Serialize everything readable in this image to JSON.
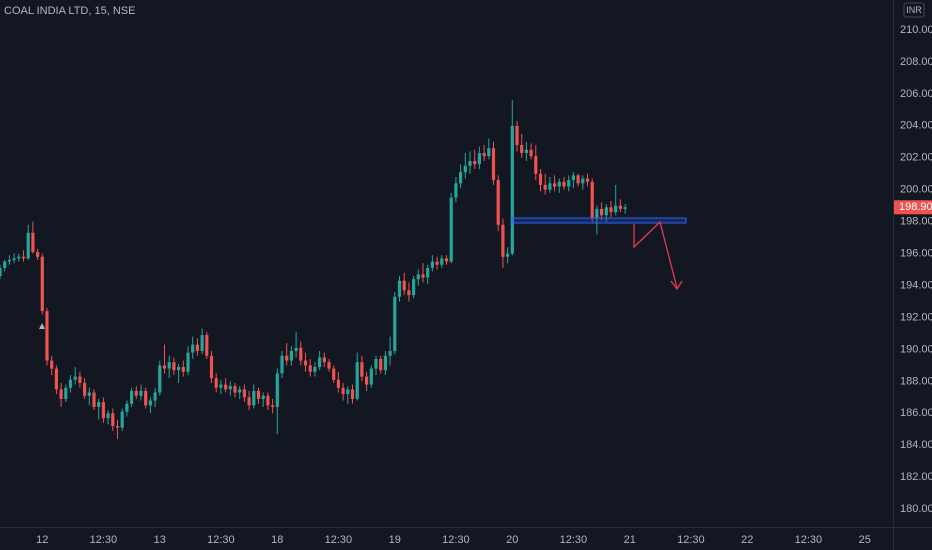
{
  "chart_data": {
    "type": "candlestick",
    "title": "COAL INDIA LTD, 15, NSE",
    "currency": "INR",
    "up_color": "#26a69a",
    "down_color": "#ef5350",
    "grid": false,
    "xlim": [
      0,
      190
    ],
    "ylim": [
      178.88,
      211.88
    ],
    "xticks": [
      {
        "value": 9,
        "label": "12"
      },
      {
        "value": 22,
        "label": "12:30"
      },
      {
        "value": 34,
        "label": "13"
      },
      {
        "value": 47,
        "label": "12:30"
      },
      {
        "value": 59,
        "label": "18"
      },
      {
        "value": 72,
        "label": "12:30"
      },
      {
        "value": 84,
        "label": "19"
      },
      {
        "value": 97,
        "label": "12:30"
      },
      {
        "value": 109,
        "label": "20"
      },
      {
        "value": 122,
        "label": "12:30"
      },
      {
        "value": 134,
        "label": "21"
      },
      {
        "value": 147,
        "label": "12:30"
      },
      {
        "value": 159,
        "label": "22"
      },
      {
        "value": 172,
        "label": "12:30"
      },
      {
        "value": 184,
        "label": "25"
      }
    ],
    "yticks": [
      {
        "value": 180,
        "label": "180.00"
      },
      {
        "value": 182,
        "label": "182.00"
      },
      {
        "value": 184,
        "label": "184.00"
      },
      {
        "value": 186,
        "label": "186.00"
      },
      {
        "value": 188,
        "label": "188.00"
      },
      {
        "value": 190,
        "label": "190.00"
      },
      {
        "value": 192,
        "label": "192.00"
      },
      {
        "value": 194,
        "label": "194.00"
      },
      {
        "value": 196,
        "label": "196.00"
      },
      {
        "value": 198,
        "label": "198.00"
      },
      {
        "value": 200,
        "label": "200.00"
      },
      {
        "value": 202,
        "label": "202.00"
      },
      {
        "value": 204,
        "label": "204.00"
      },
      {
        "value": 206,
        "label": "206.00"
      },
      {
        "value": 208,
        "label": "208.00"
      },
      {
        "value": 210,
        "label": "210.00"
      }
    ],
    "last_price": {
      "value": 198.9,
      "label": "198.90"
    },
    "ohlc": [
      [
        194.6,
        195.3,
        194.4,
        195.1
      ],
      [
        195.1,
        195.6,
        194.9,
        195.5
      ],
      [
        195.5,
        195.9,
        195.3,
        195.6
      ],
      [
        195.6,
        196.0,
        195.4,
        195.7
      ],
      [
        195.7,
        196.0,
        195.5,
        195.8
      ],
      [
        195.8,
        196.2,
        195.5,
        195.7
      ],
      [
        195.7,
        197.8,
        195.6,
        197.3
      ],
      [
        197.3,
        198.0,
        196.0,
        196.1
      ],
      [
        196.1,
        196.3,
        195.6,
        195.8
      ],
      [
        195.8,
        196.0,
        192.2,
        192.4
      ],
      [
        192.4,
        192.6,
        189.0,
        189.3
      ],
      [
        189.3,
        189.6,
        188.4,
        188.8
      ],
      [
        188.8,
        189.0,
        187.2,
        187.5
      ],
      [
        187.5,
        187.9,
        186.4,
        186.9
      ],
      [
        186.9,
        187.8,
        186.7,
        187.6
      ],
      [
        187.6,
        188.4,
        187.3,
        188.1
      ],
      [
        188.1,
        188.9,
        187.8,
        188.3
      ],
      [
        188.3,
        188.6,
        187.6,
        187.9
      ],
      [
        187.9,
        188.2,
        186.9,
        187.1
      ],
      [
        187.1,
        187.6,
        186.5,
        187.3
      ],
      [
        187.3,
        187.5,
        186.2,
        186.4
      ],
      [
        186.4,
        186.9,
        185.6,
        186.7
      ],
      [
        186.7,
        187.0,
        185.4,
        185.7
      ],
      [
        185.7,
        186.2,
        185.3,
        186.0
      ],
      [
        186.0,
        186.3,
        184.9,
        185.2
      ],
      [
        185.2,
        185.6,
        184.4,
        185.1
      ],
      [
        185.1,
        186.3,
        184.9,
        186.1
      ],
      [
        186.1,
        186.8,
        185.8,
        186.6
      ],
      [
        186.6,
        187.6,
        186.4,
        187.4
      ],
      [
        187.4,
        187.7,
        186.9,
        187.1
      ],
      [
        187.1,
        187.8,
        186.8,
        187.4
      ],
      [
        187.4,
        187.6,
        186.3,
        186.5
      ],
      [
        186.5,
        187.0,
        186.0,
        186.8
      ],
      [
        186.8,
        187.6,
        186.4,
        187.3
      ],
      [
        187.3,
        189.3,
        187.1,
        189.0
      ],
      [
        189.0,
        190.3,
        188.5,
        188.8
      ],
      [
        188.8,
        189.6,
        188.2,
        189.2
      ],
      [
        189.2,
        189.5,
        188.4,
        188.7
      ],
      [
        188.7,
        189.1,
        187.9,
        188.9
      ],
      [
        188.9,
        189.3,
        188.3,
        188.6
      ],
      [
        188.6,
        190.2,
        188.4,
        189.8
      ],
      [
        189.8,
        190.8,
        189.4,
        190.3
      ],
      [
        190.3,
        190.7,
        189.6,
        189.9
      ],
      [
        189.9,
        191.3,
        189.7,
        190.9
      ],
      [
        190.9,
        191.1,
        189.4,
        189.6
      ],
      [
        189.6,
        189.9,
        187.9,
        188.2
      ],
      [
        188.2,
        188.5,
        187.3,
        187.6
      ],
      [
        187.6,
        188.1,
        187.2,
        187.8
      ],
      [
        187.8,
        188.2,
        187.3,
        187.5
      ],
      [
        187.5,
        188.0,
        187.1,
        187.7
      ],
      [
        187.7,
        187.9,
        187.0,
        187.3
      ],
      [
        187.3,
        187.7,
        186.9,
        187.5
      ],
      [
        187.5,
        187.8,
        186.7,
        187.0
      ],
      [
        187.0,
        187.4,
        186.2,
        186.5
      ],
      [
        186.5,
        187.8,
        186.3,
        187.4
      ],
      [
        187.4,
        187.6,
        186.6,
        186.9
      ],
      [
        186.9,
        187.3,
        186.4,
        187.1
      ],
      [
        187.1,
        187.3,
        186.2,
        186.5
      ],
      [
        186.5,
        186.9,
        186.0,
        186.4
      ],
      [
        186.4,
        188.8,
        184.7,
        188.5
      ],
      [
        188.5,
        189.9,
        188.2,
        189.6
      ],
      [
        189.6,
        190.4,
        189.0,
        189.3
      ],
      [
        189.3,
        190.2,
        189.0,
        189.9
      ],
      [
        189.9,
        191.1,
        189.5,
        190.1
      ],
      [
        190.1,
        190.5,
        189.0,
        189.3
      ],
      [
        189.3,
        189.8,
        188.6,
        189.0
      ],
      [
        189.0,
        189.4,
        188.3,
        188.6
      ],
      [
        188.6,
        189.2,
        188.3,
        188.9
      ],
      [
        188.9,
        189.9,
        188.7,
        189.5
      ],
      [
        189.5,
        189.8,
        188.9,
        189.2
      ],
      [
        189.2,
        189.4,
        188.6,
        188.8
      ],
      [
        188.8,
        189.0,
        187.9,
        188.1
      ],
      [
        188.1,
        188.6,
        187.3,
        187.6
      ],
      [
        187.6,
        187.9,
        186.8,
        187.2
      ],
      [
        187.2,
        187.7,
        186.6,
        187.5
      ],
      [
        187.5,
        187.8,
        186.6,
        186.9
      ],
      [
        186.9,
        189.8,
        186.8,
        189.2
      ],
      [
        189.2,
        189.6,
        188.0,
        188.3
      ],
      [
        188.3,
        188.6,
        187.4,
        187.8
      ],
      [
        187.8,
        189.0,
        187.6,
        188.8
      ],
      [
        188.8,
        189.6,
        188.4,
        189.4
      ],
      [
        189.4,
        189.6,
        188.5,
        188.7
      ],
      [
        188.7,
        189.9,
        188.4,
        189.6
      ],
      [
        189.6,
        190.8,
        189.0,
        189.9
      ],
      [
        189.9,
        193.6,
        189.7,
        193.3
      ],
      [
        193.3,
        194.6,
        193.0,
        194.3
      ],
      [
        194.3,
        194.8,
        193.4,
        193.7
      ],
      [
        193.7,
        194.2,
        193.0,
        193.4
      ],
      [
        193.4,
        194.6,
        193.2,
        194.4
      ],
      [
        194.4,
        195.0,
        194.0,
        194.7
      ],
      [
        194.7,
        195.4,
        194.2,
        194.5
      ],
      [
        194.5,
        195.3,
        194.1,
        195.1
      ],
      [
        195.1,
        195.9,
        194.9,
        195.5
      ],
      [
        195.5,
        195.8,
        195.0,
        195.3
      ],
      [
        195.3,
        195.9,
        195.1,
        195.7
      ],
      [
        195.7,
        195.9,
        195.3,
        195.5
      ],
      [
        195.5,
        199.8,
        195.4,
        199.5
      ],
      [
        199.5,
        200.8,
        199.2,
        200.4
      ],
      [
        200.4,
        201.6,
        200.1,
        201.1
      ],
      [
        201.1,
        202.3,
        200.7,
        201.5
      ],
      [
        201.5,
        202.4,
        201.0,
        201.8
      ],
      [
        201.8,
        202.5,
        201.3,
        201.6
      ],
      [
        201.6,
        202.7,
        201.3,
        202.3
      ],
      [
        202.3,
        202.8,
        201.8,
        202.1
      ],
      [
        202.1,
        203.2,
        201.9,
        202.6
      ],
      [
        202.6,
        203.0,
        200.3,
        200.6
      ],
      [
        200.6,
        200.9,
        197.4,
        197.8
      ],
      [
        197.8,
        198.2,
        195.1,
        195.8
      ],
      [
        195.8,
        196.4,
        195.4,
        196.0
      ],
      [
        196.0,
        205.6,
        195.9,
        204.0
      ],
      [
        204.0,
        204.3,
        202.4,
        202.8
      ],
      [
        202.8,
        203.5,
        202.0,
        202.3
      ],
      [
        202.3,
        203.0,
        201.8,
        202.5
      ],
      [
        202.5,
        202.9,
        201.9,
        202.1
      ],
      [
        202.1,
        202.8,
        200.6,
        201.0
      ],
      [
        201.0,
        201.3,
        199.9,
        200.3
      ],
      [
        200.3,
        201.0,
        199.7,
        200.0
      ],
      [
        200.0,
        200.8,
        199.8,
        200.4
      ],
      [
        200.4,
        200.9,
        199.9,
        200.2
      ],
      [
        200.2,
        200.7,
        199.8,
        200.5
      ],
      [
        200.5,
        200.8,
        200.0,
        200.2
      ],
      [
        200.2,
        200.9,
        199.9,
        200.6
      ],
      [
        200.6,
        201.1,
        200.1,
        200.9
      ],
      [
        200.9,
        201.0,
        200.2,
        200.4
      ],
      [
        200.4,
        200.9,
        200.0,
        200.7
      ],
      [
        200.7,
        201.0,
        200.2,
        200.5
      ],
      [
        200.5,
        200.7,
        198.0,
        198.2
      ],
      [
        198.2,
        199.0,
        197.2,
        198.8
      ],
      [
        198.8,
        199.2,
        198.1,
        198.4
      ],
      [
        198.4,
        199.1,
        198.0,
        198.9
      ],
      [
        198.9,
        199.3,
        198.3,
        198.6
      ],
      [
        198.6,
        200.3,
        198.4,
        199.0
      ],
      [
        199.0,
        199.4,
        198.6,
        198.8
      ],
      [
        198.8,
        199.1,
        198.5,
        198.9
      ]
    ]
  }
}
